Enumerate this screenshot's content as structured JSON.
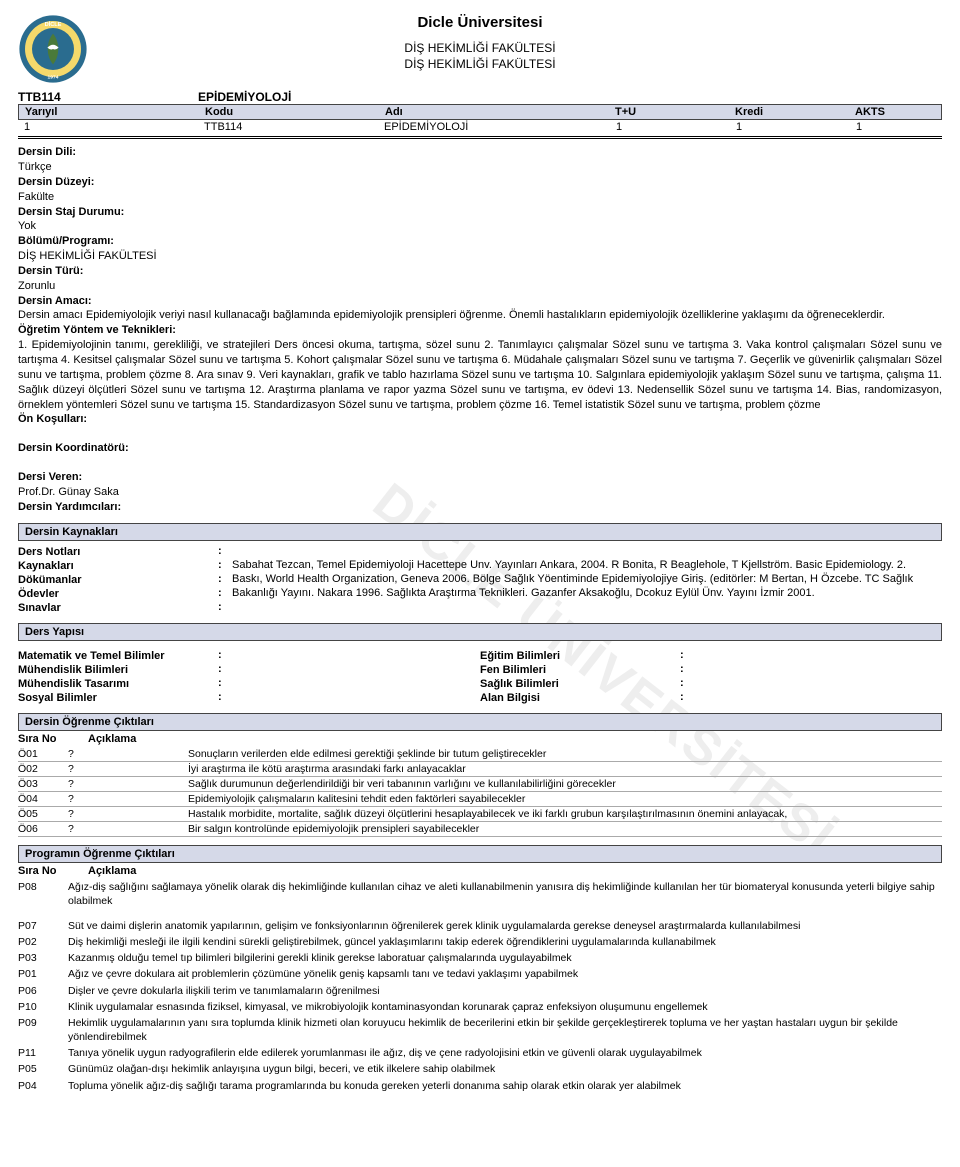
{
  "header": {
    "university": "Dicle Üniversitesi",
    "faculty_line1": "DİŞ HEKİMLİĞİ FAKÜLTESİ",
    "faculty_line2": "DİŞ HEKİMLİĞİ FAKÜLTESİ",
    "logo_text_top": "DİCLE",
    "logo_text_mid": "ÜNİVERSİTESİ",
    "logo_year": "1974",
    "logo_colors": {
      "outer": "#2a6c8f",
      "band": "#f5d96b",
      "leaf": "#4a7a3a",
      "bird": "#ffffff"
    }
  },
  "watermark": "DİCLE ÜNİVERSİTESİ",
  "course": {
    "code": "TTB114",
    "name": "EPİDEMİYOLOJİ",
    "header_cols": [
      "Yarıyıl",
      "Kodu",
      "Adı",
      "T+U",
      "Kredi",
      "AKTS"
    ],
    "row": {
      "yariyil": "1",
      "kodu": "TTB114",
      "adi": "EPİDEMİYOLOJİ",
      "tu": "1",
      "kredi": "1",
      "akts": "1"
    }
  },
  "info": {
    "dili_label": "Dersin Dili:",
    "dili": "Türkçe",
    "duzeyi_label": "Dersin Düzeyi:",
    "duzeyi": "Fakülte",
    "staj_label": "Dersin Staj Durumu:",
    "staj": "Yok",
    "bolum_label": "Bölümü/Programı:",
    "bolum": "DİŞ HEKİMLİĞİ FAKÜLTESİ",
    "turu_label": "Dersin Türü:",
    "turu": "Zorunlu",
    "amaci_label": "Dersin Amacı:",
    "amaci": "Dersin amacı Epidemiyolojik veriyi nasıl kullanacağı bağlamında epidemiyolojik prensipleri öğrenme. Önemli hastalıkların epidemiyolojik özelliklerine yaklaşımı da öğreneceklerdir.",
    "yontem_label": "Öğretim Yöntem ve Teknikleri:",
    "yontem": "1. Epidemiyolojinin tanımı, gerekliliği, ve stratejileri Ders öncesi okuma, tartışma, sözel sunu 2. Tanımlayıcı çalışmalar Sözel sunu ve tartışma 3. Vaka kontrol çalışmaları Sözel sunu ve tartışma 4. Kesitsel çalışmalar Sözel sunu ve tartışma 5. Kohort çalışmalar Sözel sunu ve tartışma 6. Müdahale çalışmaları Sözel sunu ve tartışma 7. Geçerlik ve güvenirlik çalışmaları Sözel sunu ve tartışma, problem çözme 8. Ara sınav 9. Veri kaynakları, grafik ve tablo hazırlama Sözel sunu ve tartışma 10. Salgınlara epidemiyolojik yaklaşım Sözel sunu ve tartışma, çalışma 11. Sağlık düzeyi ölçütleri Sözel sunu ve tartışma 12. Araştırma planlama ve rapor yazma Sözel sunu ve tartışma, ev ödevi 13. Nedensellik Sözel sunu ve tartışma 14. Bias, randomizasyon, örneklem yöntemleri Sözel sunu ve tartışma 15. Standardizasyon Sözel sunu ve tartışma, problem çözme 16. Temel istatistik Sözel sunu ve tartışma, problem çözme",
    "onkosul_label": "Ön Koşulları:",
    "koordinator_label": "Dersin Koordinatörü:",
    "veren_label": "Dersi Veren:",
    "veren": "Prof.Dr. Günay Saka",
    "yardimci_label": "Dersin Yardımcıları:"
  },
  "kaynaklar": {
    "title": "Dersin Kaynakları",
    "rows": [
      {
        "key": "Ders Notları",
        "val": ""
      },
      {
        "key": "Kaynakları",
        "val": "Sabahat Tezcan, Temel Epidemiyoloji Hacettepe Unv. Yayınları Ankara, 2004. R Bonita, R Beaglehole, T Kjellström. Basic Epidemiology. 2."
      },
      {
        "key": "Dökümanlar",
        "val": "Baskı, World Health Organization, Geneva 2006. Bölge Sağlık Yöentiminde Epidemiyolojiye Giriş. (editörler: M Bertan, H Özcebe. TC Sağlık"
      },
      {
        "key": "Ödevler",
        "val": "Bakanlığı Yayını. Nakara 1996. Sağlıkta Araştırma Teknikleri. Gazanfer Aksakoğlu, Dcokuz Eylül Ünv. Yayını İzmir 2001."
      },
      {
        "key": "Sınavlar",
        "val": ""
      }
    ]
  },
  "yapisi": {
    "title": "Ders Yapısı",
    "left": [
      {
        "key": "Matematik ve Temel Bilimler",
        "val": ""
      },
      {
        "key": "Mühendislik Bilimleri",
        "val": ""
      },
      {
        "key": "Mühendislik Tasarımı",
        "val": ""
      },
      {
        "key": "Sosyal Bilimler",
        "val": ""
      }
    ],
    "right": [
      {
        "key": "Eğitim Bilimleri",
        "val": ""
      },
      {
        "key": "Fen Bilimleri",
        "val": ""
      },
      {
        "key": "Sağlık Bilimleri",
        "val": ""
      },
      {
        "key": "Alan Bilgisi",
        "val": ""
      }
    ]
  },
  "ogrenme": {
    "title": "Dersin Öğrenme Çıktıları",
    "col1": "Sıra No",
    "col2": "Açıklama",
    "rows": [
      {
        "no": "Ö01",
        "q": "?",
        "desc": "Sonuçların verilerden elde edilmesi gerektiği şeklinde bir tutum geliştirecekler"
      },
      {
        "no": "Ö02",
        "q": "?",
        "desc": "İyi araştırma ile kötü araştırma arasındaki farkı anlayacaklar"
      },
      {
        "no": "Ö03",
        "q": "?",
        "desc": "Sağlık durumunun değerlendirildiği bir veri tabanının varlığını ve kullanılabilirliğini görecekler"
      },
      {
        "no": "Ö04",
        "q": "?",
        "desc": "Epidemiyolojik çalışmaların kalitesini tehdit eden faktörleri sayabilecekler"
      },
      {
        "no": "Ö05",
        "q": "?",
        "desc": "Hastalık morbidite, mortalite, sağlık düzeyi ölçütlerini hesaplayabilecek ve iki farklı grubun karşılaştırılmasının önemini anlayacak,"
      },
      {
        "no": "Ö06",
        "q": "?",
        "desc": "Bir salgın kontrolünde epidemiyolojik prensipleri sayabilecekler"
      }
    ]
  },
  "program": {
    "title": "Programın Öğrenme Çıktıları",
    "col1": "Sıra No",
    "col2": "Açıklama",
    "rows": [
      {
        "no": "P08",
        "desc": "Ağız-diş sağlığını sağlamaya yönelik olarak diş hekimliğinde kullanılan cihaz ve aleti kullanabilmenin yanısıra diş hekimliğinde kullanılan her tür biomateryal konusunda yeterli bilgiye sahip olabilmek"
      },
      {
        "no": "P07",
        "desc": "Süt ve daimi dişlerin anatomik yapılarının, gelişim ve fonksiyonlarının öğrenilerek gerek klinik uygulamalarda gerekse deneysel araştırmalarda kullanılabilmesi"
      },
      {
        "no": "P02",
        "desc": "Diş hekimliği mesleği ile ilgili kendini sürekli geliştirebilmek, güncel yaklaşımlarını takip ederek öğrendiklerini uygulamalarında kullanabilmek"
      },
      {
        "no": "P03",
        "desc": "Kazanmış olduğu temel tıp bilimleri bilgilerini gerekli klinik gerekse laboratuar çalışmalarında uygulayabilmek"
      },
      {
        "no": "P01",
        "desc": "Ağız ve çevre dokulara ait problemlerin çözümüne yönelik geniş kapsamlı tanı ve tedavi yaklaşımı yapabilmek"
      },
      {
        "no": "P06",
        "desc": "Dişler ve çevre dokularla ilişkili terim ve tanımlamaların öğrenilmesi"
      },
      {
        "no": "P10",
        "desc": "Klinik uygulamalar esnasında fiziksel, kimyasal, ve mikrobiyolojik kontaminasyondan korunarak çapraz enfeksiyon oluşumunu engellemek"
      },
      {
        "no": "P09",
        "desc": "Hekimlik uygulamalarının yanı sıra toplumda klinik hizmeti olan koruyucu hekimlik de becerilerini etkin bir şekilde gerçekleştirerek topluma ve her yaştan hastaları uygun bir şekilde yönlendirebilmek"
      },
      {
        "no": "P11",
        "desc": "Tanıya yönelik uygun radyografilerin elde edilerek yorumlanması ile ağız, diş ve çene radyolojisini etkin ve güvenli olarak uygulayabilmek"
      },
      {
        "no": "P05",
        "desc": "Günümüz olağan-dışı hekimlik anlayışına uygun bilgi, beceri, ve etik ilkelere sahip olabilmek"
      },
      {
        "no": "P04",
        "desc": "Topluma yönelik ağız-diş sağlığı tarama programlarında bu konuda gereken yeterli donanıma sahip olarak etkin olarak yer alabilmek"
      }
    ]
  },
  "colors": {
    "bar_bg": "#d5d9e8",
    "border": "#444444",
    "row_border": "#aaaaaa"
  }
}
